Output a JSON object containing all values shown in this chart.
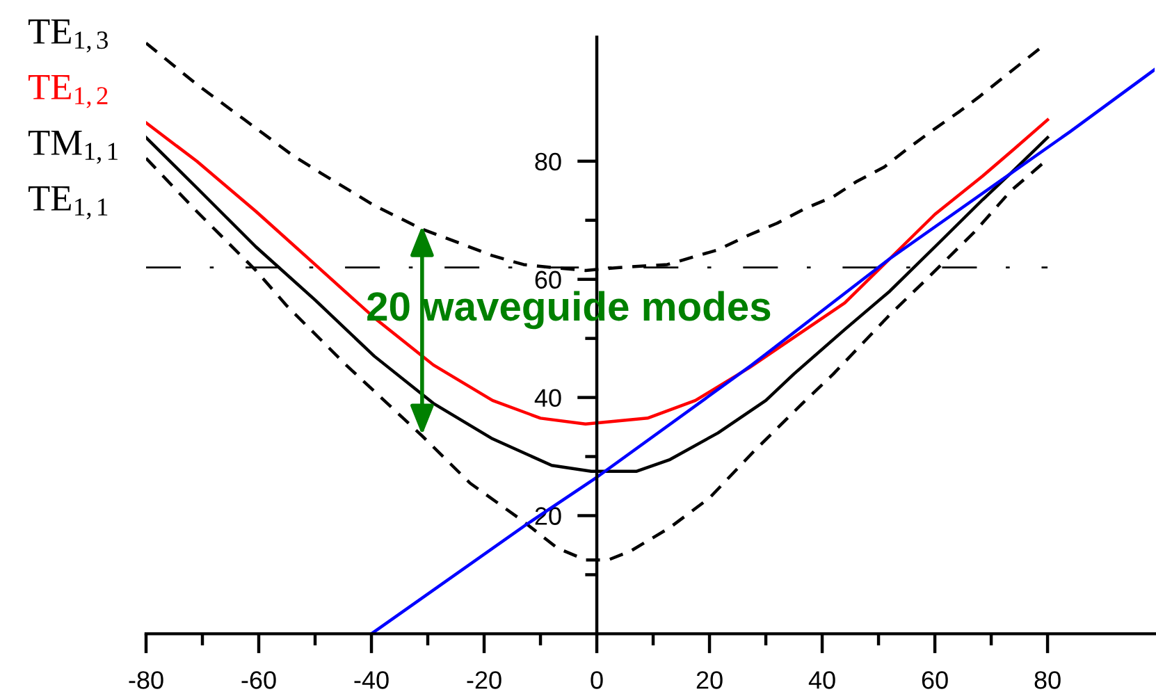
{
  "chart_data": {
    "type": "line",
    "series": [
      {
        "name": "TE$_{1,3}$",
        "color": "#000000",
        "line_style": "dashed",
        "x": [
          -80,
          -71,
          -62.5,
          -54,
          -49,
          -39.5,
          -31,
          -24,
          -18.5,
          -13,
          -8,
          -2,
          4,
          12.5,
          21.5,
          27,
          32,
          37,
          42,
          46,
          51,
          55,
          60,
          64.5,
          68,
          78.5
        ],
        "values": [
          100,
          93,
          87,
          81,
          78,
          72.5,
          68.5,
          66,
          64,
          62.5,
          62,
          61.5,
          62,
          62.5,
          65,
          67.5,
          69.5,
          72,
          74,
          76.5,
          79,
          82,
          85.5,
          88.5,
          91,
          99
        ]
      },
      {
        "name": "TE$_{1,2}$",
        "color": "#ff0000",
        "line_style": "solid",
        "x": [
          -80,
          -71,
          -60.5,
          -50,
          -39.5,
          -29,
          -18.5,
          -10,
          -2,
          9,
          17.5,
          27,
          35.5,
          44,
          52,
          60,
          68.5,
          74,
          80
        ],
        "values": [
          86.5,
          80,
          71.5,
          62.5,
          53.5,
          45.5,
          39.5,
          36.5,
          35.5,
          36.5,
          39.5,
          45,
          50.5,
          56,
          63.5,
          71,
          77.5,
          82,
          87
        ]
      },
      {
        "name": "TM$_{1,1}$",
        "color": "#000000",
        "line_style": "solid",
        "x": [
          -80,
          -71,
          -60.5,
          -50,
          -39.5,
          -29,
          -18.5,
          -8,
          -1,
          7,
          13,
          21.5,
          30,
          35,
          44,
          52,
          60,
          68.5,
          73.5,
          80
        ],
        "values": [
          84,
          75.5,
          65.5,
          56.5,
          47,
          39,
          33,
          28.5,
          27.5,
          27.5,
          29.5,
          34,
          39.5,
          44,
          51.5,
          58,
          65.5,
          73.5,
          78,
          84
        ]
      },
      {
        "name": "TE$_{1,1}$",
        "color": "#000000",
        "line_style": "dashed",
        "x": [
          -80,
          -71,
          -60.5,
          -55,
          -44.5,
          -31,
          -22.5,
          -13,
          -7,
          -2,
          2,
          6,
          13,
          20,
          28,
          36.5,
          42,
          52,
          58.5,
          67,
          73.5,
          79
        ],
        "values": [
          80.5,
          71.5,
          61.5,
          55.5,
          45.5,
          33.5,
          25.5,
          19,
          14.5,
          12.5,
          12.5,
          14,
          18,
          23,
          31,
          39,
          44,
          54,
          60,
          68,
          75,
          79.5
        ]
      },
      {
        "color": "#0000ff",
        "line_style": "solid",
        "x": [
          -40,
          -12.5,
          0,
          27.5,
          52,
          84,
          99
        ],
        "values": [
          0,
          18.5,
          26.5,
          45.5,
          63.5,
          85,
          95.5
        ]
      }
    ],
    "xlim": [
      -80,
      99
    ],
    "ylim": [
      0,
      101
    ],
    "xticks": [
      -80,
      {
        "value": -70,
        "label": null
      },
      -60,
      {
        "value": -50,
        "label": null
      },
      -40,
      {
        "value": -30,
        "label": null
      },
      -20,
      {
        "value": -10,
        "label": null
      },
      0,
      {
        "value": 10,
        "label": null
      },
      20,
      {
        "value": 30,
        "label": null
      },
      40,
      {
        "value": 50,
        "label": null
      },
      60,
      {
        "value": 70,
        "label": null
      },
      80
    ],
    "yticks": [
      {
        "value": 10,
        "label": null
      },
      20,
      {
        "value": 30,
        "label": null
      },
      40,
      {
        "value": 50,
        "label": null
      },
      60,
      {
        "value": 70,
        "label": null
      },
      80
    ],
    "ref_lines": [
      {
        "axis": "y",
        "value": 62,
        "color": "#000000",
        "line_style": "dashdot"
      }
    ],
    "annotations": [
      "20 waveguide modes"
    ]
  }
}
